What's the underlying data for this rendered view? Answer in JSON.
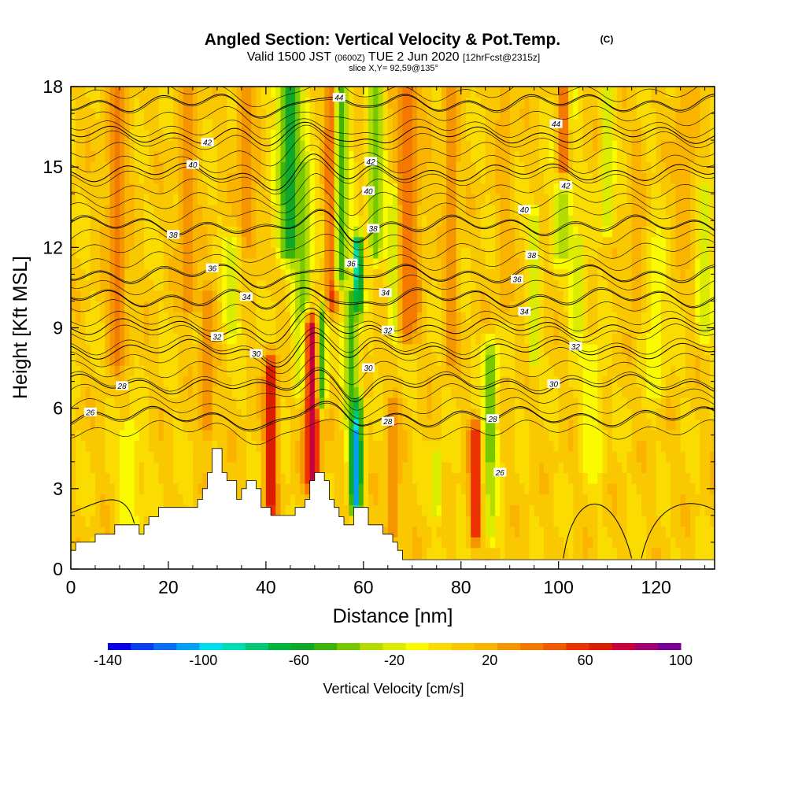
{
  "chart_data": {
    "type": "heatmap",
    "title": "Angled Section: Vertical Velocity & Pot.Temp.",
    "title_mark": "(C)",
    "subtitle": {
      "prefix": "Valid 1500 JST",
      "utc": "(0600Z)",
      "date": "TUE 2 Jun 2020",
      "forecast": "[12hrFcst@2315z]"
    },
    "slice_label": "slice X,Y= 92,59@135°",
    "xlabel": "Distance [nm]",
    "ylabel": "Height [Kft MSL]",
    "xlim": [
      0,
      132
    ],
    "ylim": [
      0,
      18
    ],
    "x_ticks": [
      0,
      20,
      40,
      60,
      80,
      100,
      120
    ],
    "y_ticks": [
      0,
      3,
      6,
      9,
      12,
      15,
      18
    ],
    "colorbar": {
      "label": "Vertical Velocity [cm/s]",
      "tick_labels": [
        "-140",
        "-100",
        "-60",
        "-20",
        "20",
        "60",
        "100"
      ],
      "min": -140,
      "max": 100,
      "step": 10,
      "colors": [
        "#0a00e6",
        "#0a3cf0",
        "#0a6ef5",
        "#00a0f5",
        "#00dcf0",
        "#00dcb4",
        "#00c878",
        "#00b43c",
        "#10a828",
        "#3cb40a",
        "#78c800",
        "#b4dc00",
        "#dcec00",
        "#fafa00",
        "#fadc00",
        "#fac800",
        "#fab400",
        "#f59600",
        "#f57800",
        "#f05a00",
        "#eb3200",
        "#dc1e00",
        "#c8003c",
        "#a00070",
        "#780096"
      ]
    },
    "background_value_cm_s": 12,
    "velocity_bands": [
      {
        "x": 9.5,
        "half_width_nm": 2.0,
        "y0": 8,
        "y1": 18,
        "value": 45
      },
      {
        "x": 24,
        "half_width_nm": 1.8,
        "y0": 10,
        "y1": 18,
        "value": 40
      },
      {
        "x": 28,
        "half_width_nm": 1.5,
        "y0": 5.5,
        "y1": 10,
        "value": 40
      },
      {
        "x": 36,
        "half_width_nm": 2.0,
        "y0": 12,
        "y1": 18,
        "value": 35
      },
      {
        "x": 41,
        "half_width_nm": 1.2,
        "y0": 2.5,
        "y1": 7.5,
        "value": 85
      },
      {
        "x": 45,
        "half_width_nm": 2.5,
        "y0": 12,
        "y1": 18,
        "value": -60
      },
      {
        "x": 47.5,
        "half_width_nm": 1.8,
        "y0": 7,
        "y1": 15,
        "value": -35
      },
      {
        "x": 49.5,
        "half_width_nm": 1.6,
        "y0": 3.5,
        "y1": 9,
        "value": 90
      },
      {
        "x": 51.5,
        "half_width_nm": 1.0,
        "y0": 6.5,
        "y1": 9.5,
        "value": -50
      },
      {
        "x": 53.5,
        "half_width_nm": 1.3,
        "y0": 10,
        "y1": 18,
        "value": 65
      },
      {
        "x": 55.5,
        "half_width_nm": 1.6,
        "y0": 11,
        "y1": 18,
        "value": -45
      },
      {
        "x": 58.8,
        "half_width_nm": 0.9,
        "y0": 10,
        "y1": 12,
        "value": -100
      },
      {
        "x": 58.5,
        "half_width_nm": 1.2,
        "y0": 2.5,
        "y1": 6,
        "value": -110
      },
      {
        "x": 57.5,
        "half_width_nm": 1.5,
        "y0": 6,
        "y1": 10,
        "value": -45
      },
      {
        "x": 62.5,
        "half_width_nm": 1.6,
        "y0": 12,
        "y1": 18,
        "value": -40
      },
      {
        "x": 66.5,
        "half_width_nm": 1.3,
        "y0": 9,
        "y1": 14,
        "value": -45
      },
      {
        "x": 69,
        "half_width_nm": 2.5,
        "y0": 9,
        "y1": 18,
        "value": 50
      },
      {
        "x": 66,
        "half_width_nm": 1.5,
        "y0": 1.5,
        "y1": 6,
        "value": 35
      },
      {
        "x": 75,
        "half_width_nm": 1.0,
        "y0": 2.5,
        "y1": 4,
        "value": -25
      },
      {
        "x": 78,
        "half_width_nm": 1.5,
        "y0": 8,
        "y1": 18,
        "value": 35
      },
      {
        "x": 83,
        "half_width_nm": 1.2,
        "y0": 1.5,
        "y1": 5,
        "value": 75
      },
      {
        "x": 86,
        "half_width_nm": 1.4,
        "y0": 4,
        "y1": 8,
        "value": -40
      },
      {
        "x": 86,
        "half_width_nm": 1.2,
        "y0": 1.5,
        "y1": 3.5,
        "value": -25
      },
      {
        "x": 89,
        "half_width_nm": 1.5,
        "y0": 10,
        "y1": 18,
        "value": 30
      },
      {
        "x": 95,
        "half_width_nm": 1.2,
        "y0": 8,
        "y1": 13,
        "value": -20
      },
      {
        "x": 101,
        "half_width_nm": 2.0,
        "y0": 12,
        "y1": 18,
        "value": -30
      },
      {
        "x": 104,
        "half_width_nm": 1.5,
        "y0": 9,
        "y1": 12,
        "value": -20
      },
      {
        "x": 101,
        "half_width_nm": 1.5,
        "y0": 15,
        "y1": 18,
        "value": 50
      },
      {
        "x": 110,
        "half_width_nm": 1.2,
        "y0": 13,
        "y1": 18,
        "value": -25
      },
      {
        "x": 116,
        "half_width_nm": 1.5,
        "y0": 10,
        "y1": 16,
        "value": 30
      },
      {
        "x": 120,
        "half_width_nm": 2.0,
        "y0": 7,
        "y1": 12,
        "value": -10
      },
      {
        "x": 126,
        "half_width_nm": 2.0,
        "y0": 12,
        "y1": 18,
        "value": 30
      },
      {
        "x": 130,
        "half_width_nm": 1.5,
        "y0": 9,
        "y1": 14,
        "value": -20
      },
      {
        "x": 12,
        "half_width_nm": 2.0,
        "y0": 1.5,
        "y1": 5,
        "value": -10
      },
      {
        "x": 33,
        "half_width_nm": 1.8,
        "y0": 9,
        "y1": 12,
        "value": -15
      },
      {
        "x": 107,
        "half_width_nm": 2.0,
        "y0": 4,
        "y1": 8,
        "value": -10
      }
    ],
    "terrain_profile": [
      [
        0,
        0.7
      ],
      [
        1,
        0.7
      ],
      [
        1,
        1.0
      ],
      [
        5,
        1.0
      ],
      [
        5,
        1.3
      ],
      [
        9,
        1.3
      ],
      [
        9,
        1.65
      ],
      [
        14,
        1.65
      ],
      [
        14,
        1.3
      ],
      [
        15,
        1.3
      ],
      [
        15,
        1.65
      ],
      [
        16,
        1.65
      ],
      [
        16,
        1.95
      ],
      [
        18,
        1.95
      ],
      [
        18,
        2.3
      ],
      [
        26,
        2.3
      ],
      [
        26,
        2.6
      ],
      [
        27,
        2.6
      ],
      [
        27,
        3.0
      ],
      [
        28,
        3.0
      ],
      [
        28,
        3.6
      ],
      [
        29,
        3.6
      ],
      [
        29,
        4.5
      ],
      [
        31,
        4.5
      ],
      [
        31,
        3.6
      ],
      [
        32,
        3.6
      ],
      [
        32,
        3.3
      ],
      [
        34,
        3.3
      ],
      [
        34,
        2.6
      ],
      [
        35,
        2.6
      ],
      [
        35,
        3.0
      ],
      [
        36,
        3.0
      ],
      [
        36,
        3.3
      ],
      [
        38,
        3.3
      ],
      [
        38,
        3.0
      ],
      [
        39,
        3.0
      ],
      [
        39,
        2.3
      ],
      [
        41,
        2.3
      ],
      [
        41,
        2.0
      ],
      [
        46,
        2.0
      ],
      [
        46,
        2.3
      ],
      [
        48,
        2.3
      ],
      [
        48,
        2.6
      ],
      [
        49,
        2.6
      ],
      [
        49,
        3.3
      ],
      [
        50,
        3.3
      ],
      [
        50,
        3.6
      ],
      [
        52,
        3.6
      ],
      [
        52,
        3.3
      ],
      [
        53,
        3.3
      ],
      [
        53,
        2.6
      ],
      [
        54,
        2.6
      ],
      [
        54,
        2.3
      ],
      [
        55,
        2.3
      ],
      [
        55,
        1.95
      ],
      [
        56,
        1.95
      ],
      [
        56,
        1.65
      ],
      [
        58,
        1.65
      ],
      [
        58,
        2.3
      ],
      [
        61,
        2.3
      ],
      [
        61,
        1.65
      ],
      [
        64,
        1.65
      ],
      [
        64,
        1.3
      ],
      [
        66,
        1.3
      ],
      [
        66,
        1.0
      ],
      [
        67,
        1.0
      ],
      [
        67,
        0.7
      ],
      [
        68,
        0.7
      ],
      [
        68,
        0.35
      ],
      [
        132,
        0.35
      ]
    ],
    "theta_contours": [
      {
        "value": 26,
        "base": 5.7,
        "label": "26",
        "label_x": 4
      },
      {
        "value": 28,
        "base": 6.9,
        "label": "28",
        "label_x": 10.5
      },
      {
        "value": 30,
        "base": 8.2,
        "label": "30",
        "label_x": 38
      },
      {
        "value": 32,
        "base": 9.0,
        "label": "32",
        "label_x": 30
      },
      {
        "value": 34,
        "base": 10.1,
        "label": "34",
        "label_x": 36
      },
      {
        "value": 36,
        "base": 11.0,
        "label": "36",
        "label_x": 29
      },
      {
        "value": 38,
        "base": 12.8,
        "label": "38",
        "label_x": 21
      },
      {
        "value": 40,
        "base": 14.8,
        "label": "40",
        "label_x": 25
      },
      {
        "value": 42,
        "base": 16.2,
        "label": "42",
        "label_x": 28
      },
      {
        "value": 44,
        "base": 17.4,
        "label": "44",
        "label_x": 55
      }
    ],
    "contour_extra_labels": [
      {
        "text": "44",
        "x": 99.5,
        "y": 16.6
      },
      {
        "text": "42",
        "x": 61.5,
        "y": 15.2
      },
      {
        "text": "42",
        "x": 101.5,
        "y": 14.3
      },
      {
        "text": "40",
        "x": 61.0,
        "y": 14.1
      },
      {
        "text": "40",
        "x": 93.0,
        "y": 13.4
      },
      {
        "text": "38",
        "x": 62.0,
        "y": 12.7
      },
      {
        "text": "38",
        "x": 94.5,
        "y": 11.7
      },
      {
        "text": "36",
        "x": 57.5,
        "y": 11.4
      },
      {
        "text": "36",
        "x": 91.5,
        "y": 10.8
      },
      {
        "text": "34",
        "x": 64.5,
        "y": 10.3
      },
      {
        "text": "34",
        "x": 93.0,
        "y": 9.6
      },
      {
        "text": "32",
        "x": 65.0,
        "y": 8.9
      },
      {
        "text": "32",
        "x": 103.5,
        "y": 8.3
      },
      {
        "text": "30",
        "x": 61.0,
        "y": 7.5
      },
      {
        "text": "30",
        "x": 99.0,
        "y": 6.9
      },
      {
        "text": "28",
        "x": 65.0,
        "y": 5.5
      },
      {
        "text": "28",
        "x": 86.5,
        "y": 5.6
      },
      {
        "text": "26",
        "x": 88.0,
        "y": 3.6
      }
    ]
  }
}
